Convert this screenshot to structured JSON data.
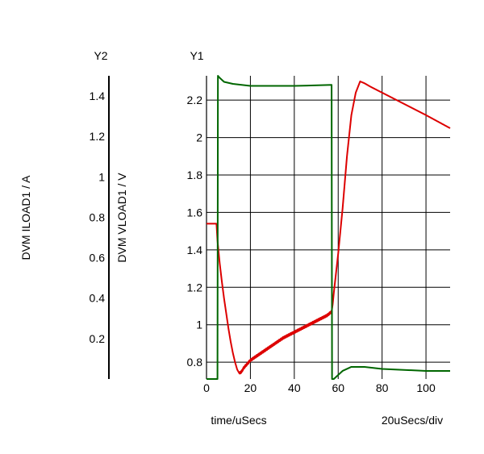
{
  "chart_data": {
    "type": "line",
    "xlabel": "time/uSecs",
    "xdiv_label": "20uSecs/div",
    "x_ticks": [
      0,
      20,
      40,
      60,
      80,
      100
    ],
    "xlim": [
      0,
      111
    ],
    "grid": true,
    "colors": {
      "y1_series": "#dd0000",
      "y2_series": "#006600",
      "grid": "#000000"
    },
    "y1": {
      "axis_name": "Y1",
      "label": "DVM VLOAD1 / V",
      "ticks": [
        0.8,
        1,
        1.2,
        1.4,
        1.6,
        1.8,
        2,
        2.2
      ],
      "ylim": [
        0.71,
        2.33
      ]
    },
    "y2": {
      "axis_name": "Y2",
      "label": "DVM ILOAD1 / A",
      "ticks": [
        0.2,
        0.4,
        0.6,
        0.8,
        1,
        1.2,
        1.4
      ],
      "ylim": [
        0.0,
        1.5
      ]
    },
    "series": [
      {
        "axis": "y1",
        "color": "#dd0000",
        "ripple": true,
        "points": [
          [
            0,
            1.54
          ],
          [
            4.5,
            1.54
          ],
          [
            4.6,
            1.53
          ],
          [
            5,
            1.45
          ],
          [
            6,
            1.33
          ],
          [
            7,
            1.23
          ],
          [
            8,
            1.14
          ],
          [
            9,
            1.06
          ],
          [
            10,
            0.98
          ],
          [
            11,
            0.91
          ],
          [
            12,
            0.85
          ],
          [
            13,
            0.8
          ],
          [
            14,
            0.76
          ],
          [
            15,
            0.74
          ],
          [
            16,
            0.75
          ],
          [
            17,
            0.77
          ],
          [
            20,
            0.81
          ],
          [
            25,
            0.85
          ],
          [
            30,
            0.89
          ],
          [
            35,
            0.93
          ],
          [
            40,
            0.96
          ],
          [
            45,
            0.99
          ],
          [
            50,
            1.02
          ],
          [
            55,
            1.05
          ],
          [
            57,
            1.07
          ],
          [
            57.5,
            1.11
          ],
          [
            58,
            1.17
          ],
          [
            60,
            1.38
          ],
          [
            62,
            1.62
          ],
          [
            64,
            1.9
          ],
          [
            66,
            2.12
          ],
          [
            68,
            2.24
          ],
          [
            70,
            2.3
          ],
          [
            72,
            2.29
          ],
          [
            75,
            2.27
          ],
          [
            80,
            2.24
          ],
          [
            90,
            2.18
          ],
          [
            100,
            2.12
          ],
          [
            111,
            2.05
          ]
        ]
      },
      {
        "axis": "y2",
        "color": "#006600",
        "ripple": false,
        "points": [
          [
            0,
            0.0
          ],
          [
            5,
            0.0
          ],
          [
            5.2,
            1.5
          ],
          [
            6,
            1.49
          ],
          [
            8,
            1.47
          ],
          [
            12,
            1.46
          ],
          [
            20,
            1.45
          ],
          [
            40,
            1.45
          ],
          [
            57,
            1.455
          ],
          [
            57.2,
            0.0
          ],
          [
            58,
            0.0
          ],
          [
            60,
            0.02
          ],
          [
            62,
            0.04
          ],
          [
            66,
            0.06
          ],
          [
            72,
            0.06
          ],
          [
            80,
            0.05
          ],
          [
            100,
            0.04
          ],
          [
            111,
            0.04
          ]
        ]
      }
    ]
  }
}
